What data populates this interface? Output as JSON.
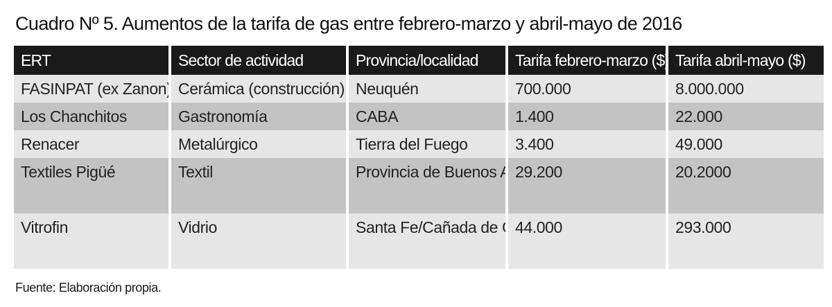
{
  "title": "Cuadro Nº 5. Aumentos de la tarifa de gas entre febrero-marzo y abril-mayo de 2016",
  "table": {
    "headers": [
      "ERT",
      "Sector de actividad",
      "Provincia/localidad",
      "Tarifa febrero-marzo ($)",
      "Tarifa abril-mayo ($)"
    ],
    "rows": [
      [
        "FASINPAT (ex Zanon)",
        "Cerámica (construcción)",
        "Neuquén",
        "700.000",
        "8.000.000"
      ],
      [
        "Los Chanchitos",
        "Gastronomía",
        "CABA",
        "1.400",
        "22.000"
      ],
      [
        "Renacer",
        "Metalúrgico",
        "Tierra del Fuego",
        "3.400",
        "49.000"
      ],
      [
        "Textiles Pigüé",
        "Textil",
        "Provincia de Buenos Aires/Saavedra",
        "29.200",
        "20.2000"
      ],
      [
        "Vitrofin",
        "Vidrio",
        "Santa Fe/Cañada de Gómez",
        "44.000",
        "293.000"
      ]
    ]
  },
  "source": "Fuente: Elaboración propia.",
  "colors": {
    "header_bg": "#1a1a1a",
    "row_light": "#e6e6e6",
    "row_dark": "#c3c3c3"
  }
}
